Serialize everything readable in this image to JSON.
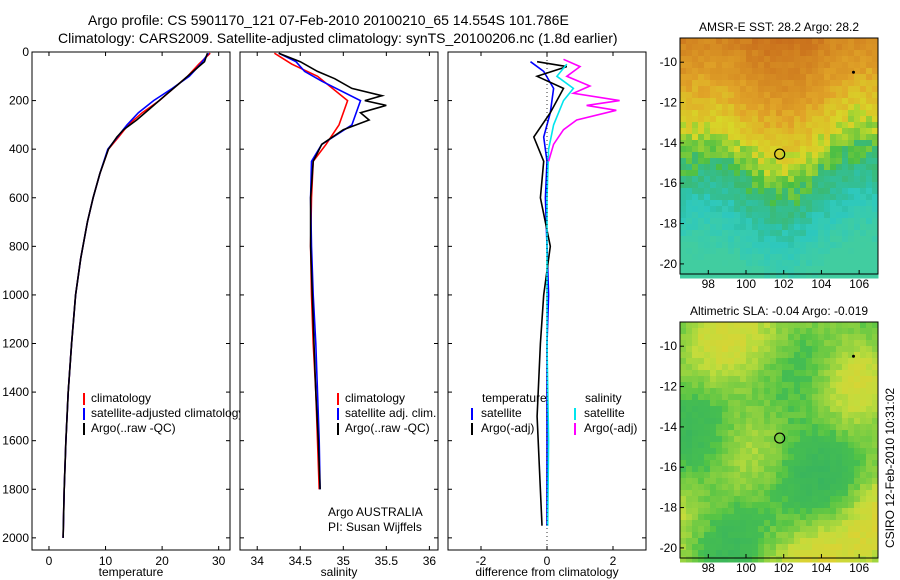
{
  "header": {
    "title_line1": "Argo profile: CS 5901170_121 07-Feb-2010 20100210_65 14.554S 101.786E",
    "title_line2": "Climatology: CARS2009. Satellite-adjusted climatology: synTS_20100206.nc (1.8d earlier)"
  },
  "footer": {
    "side_stamp": "CSIRO 12-Feb-2010 10:31:02",
    "agency": "Argo AUSTRALIA",
    "pi": "PI: Susan Wijffels"
  },
  "colors": {
    "climatology": "#ff0000",
    "satellite": "#0000ff",
    "argo": "#000000",
    "satellite_salinity": "#00e5ee",
    "argo_adj_salinity": "#ff00ff"
  },
  "chart_data": [
    {
      "id": "temperature",
      "type": "line",
      "xlabel": "temperature",
      "ylabel": "",
      "xlim": [
        -3,
        32
      ],
      "ylim": [
        2050,
        0
      ],
      "xticks": [
        0,
        10,
        20,
        30
      ],
      "yticks": [
        0,
        200,
        400,
        600,
        800,
        1000,
        1200,
        1400,
        1600,
        1800,
        2000
      ],
      "legend": [
        "climatology",
        "satellite-adjusted climatology",
        "Argo(..raw -QC)"
      ],
      "legend_placement": "lower-right",
      "series": [
        {
          "name": "climatology",
          "color": "#ff0000",
          "x": [
            28.5,
            26.5,
            24.5,
            22,
            19.5,
            16.5,
            14,
            12.3,
            10.5,
            9.0,
            7.8,
            6.8,
            5.6,
            4.7,
            4.0,
            3.4,
            3.0,
            2.7,
            2.5
          ],
          "y": [
            5,
            50,
            100,
            150,
            200,
            250,
            300,
            350,
            400,
            500,
            600,
            700,
            850,
            1000,
            1200,
            1400,
            1600,
            1800,
            2000
          ]
        },
        {
          "name": "satellite-adjusted climatology",
          "color": "#0000ff",
          "x": [
            28.2,
            26.8,
            24.8,
            21.8,
            18.5,
            15.8,
            13.8,
            12.1,
            10.4,
            9.0,
            7.8,
            6.8,
            5.6,
            4.7,
            4.0,
            3.4,
            3.0,
            2.7,
            2.5
          ],
          "y": [
            5,
            50,
            100,
            150,
            200,
            250,
            300,
            350,
            400,
            500,
            600,
            700,
            850,
            1000,
            1200,
            1400,
            1600,
            1800,
            2000
          ]
        },
        {
          "name": "Argo(..raw -QC)",
          "color": "#000000",
          "x": [
            28.0,
            27.5,
            25.5,
            23.0,
            20.5,
            18.0,
            15.5,
            13.2,
            12.0,
            10.5,
            9.0,
            7.8,
            6.8,
            5.6,
            4.7,
            4.0,
            3.4,
            3.0,
            2.7,
            2.5
          ],
          "y": [
            5,
            40,
            80,
            130,
            180,
            230,
            280,
            320,
            350,
            400,
            500,
            600,
            700,
            850,
            1000,
            1200,
            1400,
            1600,
            1800,
            2000
          ]
        }
      ]
    },
    {
      "id": "salinity",
      "type": "line",
      "xlabel": "salinity",
      "ylabel": "",
      "xlim": [
        33.8,
        36.1
      ],
      "ylim": [
        2050,
        0
      ],
      "xticks": [
        34,
        34.5,
        35,
        35.5,
        36
      ],
      "yticks": [
        0,
        200,
        400,
        600,
        800,
        1000,
        1200,
        1400,
        1600,
        1800,
        2000
      ],
      "legend": [
        "climatology",
        "satellite adj. clim.",
        "Argo(..raw -QC)"
      ],
      "legend_placement": "lower-right",
      "series": [
        {
          "name": "climatology",
          "color": "#ff0000",
          "x": [
            34.2,
            34.4,
            34.7,
            35.05,
            34.95,
            34.8,
            34.65,
            34.63,
            34.62,
            34.63,
            34.65,
            34.68,
            34.7,
            34.72
          ],
          "y": [
            5,
            50,
            100,
            200,
            300,
            380,
            450,
            600,
            800,
            1000,
            1200,
            1400,
            1600,
            1800
          ]
        },
        {
          "name": "satellite adj. clim.",
          "color": "#0000ff",
          "x": [
            34.25,
            34.45,
            34.55,
            34.75,
            35.2,
            35.1,
            34.75,
            34.63,
            34.62,
            34.63,
            34.65,
            34.68,
            34.7,
            34.72,
            34.73
          ],
          "y": [
            5,
            40,
            80,
            120,
            200,
            300,
            380,
            450,
            600,
            800,
            1000,
            1200,
            1400,
            1600,
            1800
          ]
        },
        {
          "name": "Argo(..raw -QC)",
          "color": "#000000",
          "x": [
            34.25,
            34.5,
            34.7,
            34.9,
            35.1,
            35.45,
            35.25,
            35.5,
            35.2,
            35.3,
            35.0,
            34.75,
            34.65,
            34.62,
            34.62,
            34.64,
            34.66,
            34.68,
            34.71,
            34.73
          ],
          "y": [
            5,
            40,
            80,
            110,
            150,
            180,
            200,
            220,
            250,
            280,
            320,
            380,
            450,
            600,
            800,
            1000,
            1200,
            1400,
            1600,
            1800
          ]
        }
      ]
    },
    {
      "id": "difference",
      "type": "line",
      "xlabel": "difference from climatology",
      "ylabel": "",
      "xlim": [
        -3,
        3
      ],
      "ylim": [
        2050,
        0
      ],
      "xticks": [
        -2,
        0,
        2
      ],
      "yticks": [
        0,
        200,
        400,
        600,
        800,
        1000,
        1200,
        1400,
        1600,
        1800,
        2000
      ],
      "legend_groups": [
        {
          "heading": "temperature",
          "items": [
            "satellite",
            "Argo(-adj)"
          ]
        },
        {
          "heading": "salinity",
          "items": [
            "satellite",
            "Argo(-adj)"
          ]
        }
      ],
      "legend_placement": "lower",
      "series": [
        {
          "name": "temperature satellite",
          "color": "#0000ff",
          "x": [
            -0.5,
            -0.1,
            0.2,
            0.1,
            -0.1,
            0,
            -0.05,
            0,
            0.05,
            0,
            0,
            0
          ],
          "y": [
            40,
            80,
            150,
            250,
            350,
            450,
            600,
            800,
            1000,
            1200,
            1500,
            1950
          ]
        },
        {
          "name": "temperature Argo(-adj)",
          "color": "#000000",
          "x": [
            -0.3,
            0.6,
            -0.3,
            0.5,
            0.1,
            -0.4,
            -0.1,
            -0.2,
            0.1,
            -0.1,
            -0.2,
            -0.3,
            -0.15
          ],
          "y": [
            40,
            60,
            100,
            150,
            250,
            350,
            450,
            600,
            800,
            1000,
            1200,
            1500,
            1950
          ]
        },
        {
          "name": "salinity satellite",
          "color": "#00e5ee",
          "x": [
            0.6,
            0.3,
            0.8,
            0.5,
            0.2,
            0.05,
            0,
            0,
            0,
            0.05,
            0.02
          ],
          "y": [
            50,
            100,
            150,
            200,
            300,
            400,
            600,
            800,
            1200,
            1600,
            1950
          ]
        },
        {
          "name": "salinity Argo(-adj)",
          "color": "#ff00ff",
          "x": [
            0.5,
            1.0,
            0.6,
            1.3,
            0.8,
            2.2,
            1.2,
            2.1,
            0.9,
            0.5,
            0.2,
            0.05
          ],
          "y": [
            30,
            60,
            100,
            140,
            170,
            200,
            220,
            240,
            280,
            320,
            380,
            450
          ]
        }
      ]
    },
    {
      "id": "sst-map",
      "type": "heatmap",
      "title": "AMSR-E SST: 28.2 Argo: 28.2",
      "xlim": [
        96.5,
        107
      ],
      "ylim": [
        -20.5,
        -8.8
      ],
      "xticks": [
        98,
        100,
        102,
        104,
        106
      ],
      "yticks": [
        -10,
        -12,
        -14,
        -16,
        -18,
        -20
      ],
      "marker": {
        "lon": 101.786,
        "lat": -14.554
      }
    },
    {
      "id": "sla-map",
      "type": "heatmap",
      "title": "Altimetric SLA: -0.04 Argo: -0.019",
      "xlim": [
        96.5,
        107
      ],
      "ylim": [
        -20.5,
        -8.8
      ],
      "xticks": [
        98,
        100,
        102,
        104,
        106
      ],
      "yticks": [
        -10,
        -12,
        -14,
        -16,
        -18,
        -20
      ],
      "marker": {
        "lon": 101.786,
        "lat": -14.554
      }
    }
  ]
}
